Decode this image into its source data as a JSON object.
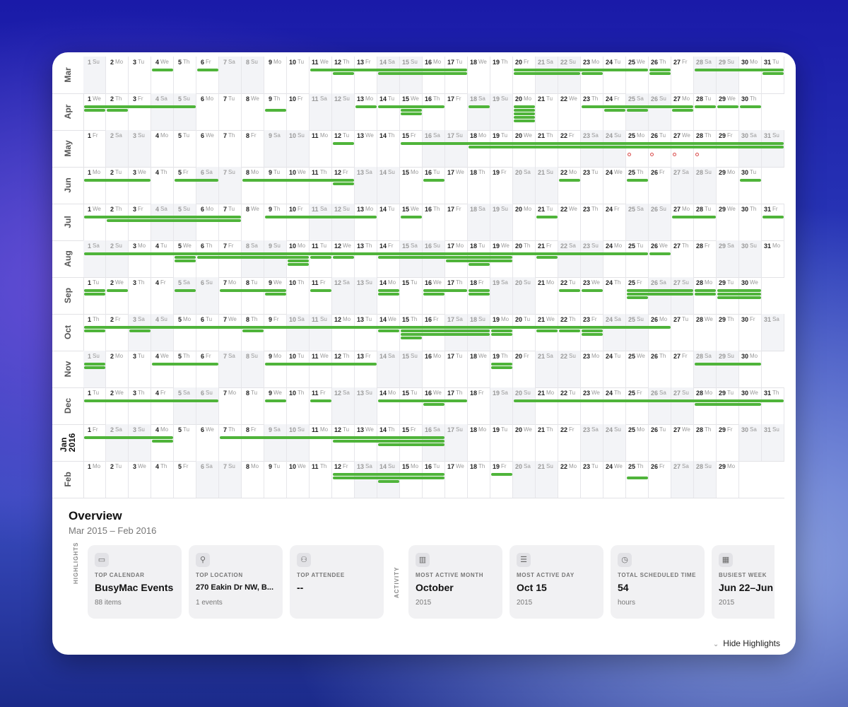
{
  "colors": {
    "event_bar": "#4fb43a",
    "weekend_bg": "#f3f4f7",
    "birthday_dot": "#d94a4a"
  },
  "months": [
    {
      "label": "Mar",
      "year_label": "",
      "start_dow": 0,
      "days": 31
    },
    {
      "label": "Apr",
      "year_label": "",
      "start_dow": 3,
      "days": 30
    },
    {
      "label": "May",
      "year_label": "",
      "start_dow": 5,
      "days": 31
    },
    {
      "label": "Jun",
      "year_label": "",
      "start_dow": 1,
      "days": 30
    },
    {
      "label": "Jul",
      "year_label": "",
      "start_dow": 3,
      "days": 31
    },
    {
      "label": "Aug",
      "year_label": "",
      "start_dow": 6,
      "days": 31
    },
    {
      "label": "Sep",
      "year_label": "",
      "start_dow": 2,
      "days": 30
    },
    {
      "label": "Oct",
      "year_label": "",
      "start_dow": 4,
      "days": 31
    },
    {
      "label": "Nov",
      "year_label": "",
      "start_dow": 0,
      "days": 30
    },
    {
      "label": "Dec",
      "year_label": "",
      "start_dow": 2,
      "days": 31
    },
    {
      "label": "Jan",
      "year_label": "2016",
      "start_dow": 5,
      "days": 31
    },
    {
      "label": "Feb",
      "year_label": "",
      "start_dow": 1,
      "days": 29
    }
  ],
  "day_names": [
    "Su",
    "Mo",
    "Tu",
    "We",
    "Th",
    "Fr",
    "Sa"
  ],
  "events": [
    [
      [
        4,
        4,
        0
      ],
      [
        6,
        6,
        0
      ],
      [
        11,
        17,
        0
      ],
      [
        12,
        12,
        1
      ],
      [
        14,
        17,
        1
      ],
      [
        20,
        24,
        0
      ],
      [
        20,
        22,
        1
      ],
      [
        23,
        23,
        1
      ],
      [
        24,
        25,
        0
      ],
      [
        26,
        26,
        0
      ],
      [
        26,
        26,
        1
      ],
      [
        28,
        31,
        0
      ],
      [
        31,
        31,
        1
      ]
    ],
    [
      [
        1,
        5,
        0
      ],
      [
        1,
        1,
        1
      ],
      [
        2,
        2,
        1
      ],
      [
        9,
        9,
        1
      ],
      [
        13,
        13,
        0
      ],
      [
        14,
        16,
        0
      ],
      [
        15,
        15,
        1
      ],
      [
        15,
        15,
        2
      ],
      [
        18,
        18,
        0
      ],
      [
        20,
        20,
        0
      ],
      [
        20,
        20,
        1
      ],
      [
        20,
        20,
        2
      ],
      [
        20,
        20,
        3
      ],
      [
        20,
        20,
        4
      ],
      [
        23,
        27,
        0
      ],
      [
        24,
        24,
        1
      ],
      [
        25,
        25,
        1
      ],
      [
        27,
        27,
        1
      ],
      [
        28,
        28,
        0
      ],
      [
        29,
        29,
        0
      ],
      [
        30,
        30,
        0
      ]
    ],
    [
      [
        12,
        12,
        0
      ],
      [
        15,
        31,
        0
      ],
      [
        18,
        31,
        1
      ],
      [
        25,
        25,
        -1
      ],
      [
        26,
        26,
        -1
      ],
      [
        27,
        27,
        -1
      ],
      [
        28,
        28,
        -1
      ]
    ],
    [
      [
        1,
        3,
        0
      ],
      [
        5,
        6,
        0
      ],
      [
        8,
        12,
        0
      ],
      [
        12,
        12,
        1
      ],
      [
        16,
        16,
        0
      ],
      [
        22,
        22,
        0
      ],
      [
        25,
        25,
        0
      ],
      [
        30,
        30,
        0
      ]
    ],
    [
      [
        1,
        7,
        0
      ],
      [
        2,
        7,
        1
      ],
      [
        9,
        13,
        0
      ],
      [
        31,
        31,
        0
      ],
      [
        27,
        28,
        0
      ],
      [
        21,
        21,
        0
      ],
      [
        15,
        15,
        0
      ]
    ],
    [
      [
        1,
        16,
        0
      ],
      [
        5,
        5,
        1
      ],
      [
        5,
        5,
        2
      ],
      [
        6,
        10,
        1
      ],
      [
        10,
        10,
        2
      ],
      [
        10,
        10,
        3
      ],
      [
        11,
        11,
        1
      ],
      [
        12,
        12,
        1
      ],
      [
        14,
        19,
        1
      ],
      [
        14,
        24,
        0
      ],
      [
        17,
        19,
        2
      ],
      [
        18,
        18,
        3
      ],
      [
        21,
        21,
        1
      ],
      [
        24,
        25,
        0
      ],
      [
        26,
        26,
        0
      ]
    ],
    [
      [
        1,
        1,
        0
      ],
      [
        1,
        1,
        1
      ],
      [
        2,
        2,
        0
      ],
      [
        5,
        5,
        0
      ],
      [
        7,
        9,
        0
      ],
      [
        9,
        9,
        1
      ],
      [
        11,
        11,
        0
      ],
      [
        14,
        14,
        0
      ],
      [
        14,
        14,
        1
      ],
      [
        16,
        17,
        0
      ],
      [
        16,
        16,
        1
      ],
      [
        18,
        18,
        0
      ],
      [
        18,
        18,
        1
      ],
      [
        22,
        22,
        0
      ],
      [
        23,
        23,
        0
      ],
      [
        25,
        27,
        0
      ],
      [
        25,
        27,
        1
      ],
      [
        25,
        25,
        2
      ],
      [
        28,
        28,
        0
      ],
      [
        28,
        28,
        1
      ],
      [
        29,
        30,
        0
      ],
      [
        29,
        30,
        1
      ],
      [
        29,
        30,
        2
      ]
    ],
    [
      [
        1,
        26,
        0
      ],
      [
        1,
        1,
        1
      ],
      [
        3,
        3,
        1
      ],
      [
        8,
        8,
        1
      ],
      [
        14,
        14,
        1
      ],
      [
        15,
        18,
        1
      ],
      [
        15,
        18,
        2
      ],
      [
        15,
        15,
        3
      ],
      [
        19,
        19,
        1
      ],
      [
        19,
        19,
        2
      ],
      [
        21,
        21,
        1
      ],
      [
        22,
        22,
        1
      ],
      [
        23,
        23,
        1
      ],
      [
        23,
        23,
        2
      ]
    ],
    [
      [
        1,
        1,
        0
      ],
      [
        1,
        1,
        1
      ],
      [
        4,
        6,
        0
      ],
      [
        9,
        13,
        0
      ],
      [
        19,
        19,
        0
      ],
      [
        19,
        19,
        1
      ],
      [
        28,
        30,
        0
      ]
    ],
    [
      [
        1,
        6,
        0
      ],
      [
        9,
        9,
        0
      ],
      [
        11,
        11,
        0
      ],
      [
        14,
        17,
        0
      ],
      [
        16,
        16,
        1
      ],
      [
        20,
        31,
        0
      ],
      [
        28,
        30,
        1
      ]
    ],
    [
      [
        1,
        4,
        0
      ],
      [
        4,
        4,
        1
      ],
      [
        7,
        16,
        0
      ],
      [
        12,
        16,
        1
      ],
      [
        14,
        16,
        2
      ]
    ],
    [
      [
        12,
        16,
        0
      ],
      [
        12,
        16,
        1
      ],
      [
        14,
        14,
        2
      ],
      [
        19,
        19,
        0
      ],
      [
        25,
        25,
        1
      ]
    ]
  ],
  "overview": {
    "title": "Overview",
    "range": "Mar 2015 – Feb 2016",
    "highlights_label": "HIGHLIGHTS",
    "activity_label": "ACTIVITY",
    "highlights": [
      {
        "icon": "calendar-icon",
        "title": "TOP CALENDAR",
        "value": "BusyMac Events",
        "sub": "88 items"
      },
      {
        "icon": "location-pin-icon",
        "title": "TOP LOCATION",
        "value": "270 Eakin Dr NW, B...",
        "sub": "1 events"
      },
      {
        "icon": "people-icon",
        "title": "TOP ATTENDEE",
        "value": "--",
        "sub": ""
      }
    ],
    "activity": [
      {
        "icon": "bar-chart-icon",
        "title": "MOST ACTIVE MONTH",
        "value": "October",
        "sub": "2015"
      },
      {
        "icon": "list-icon",
        "title": "MOST ACTIVE DAY",
        "value": "Oct 15",
        "sub": "2015"
      },
      {
        "icon": "clock-icon",
        "title": "TOTAL SCHEDULED TIME",
        "value": "54",
        "sub": "hours"
      },
      {
        "icon": "calendar-week-icon",
        "title": "BUSIEST WEEK",
        "value": "Jun 22–Jun",
        "sub": "2015"
      }
    ],
    "hide_label": "Hide Highlights"
  }
}
